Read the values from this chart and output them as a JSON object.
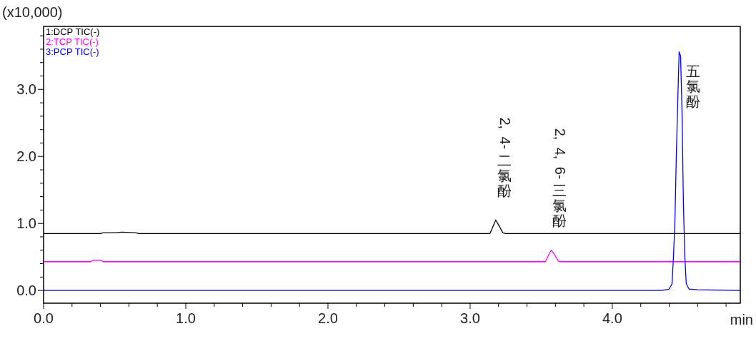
{
  "chart_data": {
    "type": "line",
    "ylabel": "(x10,000)",
    "xlabel": "min",
    "xlim": [
      0,
      4.9
    ],
    "ylim": [
      -0.19,
      3.94
    ],
    "xticks": [
      {
        "value": 0,
        "label": "0.0"
      },
      {
        "value": 0.2,
        "label": null
      },
      {
        "value": 0.4,
        "label": null
      },
      {
        "value": 0.6,
        "label": null
      },
      {
        "value": 0.8,
        "label": null
      },
      {
        "value": 1,
        "label": "1.0"
      },
      {
        "value": 1.2,
        "label": null
      },
      {
        "value": 1.4,
        "label": null
      },
      {
        "value": 1.6,
        "label": null
      },
      {
        "value": 1.8,
        "label": null
      },
      {
        "value": 2,
        "label": "2.0"
      },
      {
        "value": 2.2,
        "label": null
      },
      {
        "value": 2.4,
        "label": null
      },
      {
        "value": 2.6,
        "label": null
      },
      {
        "value": 2.8,
        "label": null
      },
      {
        "value": 3,
        "label": "3.0"
      },
      {
        "value": 3.2,
        "label": null
      },
      {
        "value": 3.4,
        "label": null
      },
      {
        "value": 3.6,
        "label": null
      },
      {
        "value": 3.8,
        "label": null
      },
      {
        "value": 4,
        "label": "4.0"
      },
      {
        "value": 4.2,
        "label": null
      },
      {
        "value": 4.4,
        "label": null
      },
      {
        "value": 4.6,
        "label": null
      },
      {
        "value": 4.8,
        "label": null
      }
    ],
    "yticks": [
      {
        "value": 0,
        "label": "0.0"
      },
      {
        "value": 0.2,
        "label": null
      },
      {
        "value": 0.4,
        "label": null
      },
      {
        "value": 0.6,
        "label": null
      },
      {
        "value": 0.8,
        "label": null
      },
      {
        "value": 1,
        "label": "1.0"
      },
      {
        "value": 1.2,
        "label": null
      },
      {
        "value": 1.4,
        "label": null
      },
      {
        "value": 1.6,
        "label": null
      },
      {
        "value": 1.8,
        "label": null
      },
      {
        "value": 2,
        "label": "2.0"
      },
      {
        "value": 2.2,
        "label": null
      },
      {
        "value": 2.4,
        "label": null
      },
      {
        "value": 2.6,
        "label": null
      },
      {
        "value": 2.8,
        "label": null
      },
      {
        "value": 3,
        "label": "3.0"
      },
      {
        "value": 3.2,
        "label": null
      },
      {
        "value": 3.4,
        "label": null
      },
      {
        "value": 3.6,
        "label": null
      },
      {
        "value": 3.8,
        "label": null
      }
    ],
    "grid": false,
    "legend": "top left",
    "marker": "none",
    "line_style": "solid",
    "series": [
      {
        "name": "1:DCP TIC(-)",
        "color": "#000000",
        "x": [
          0,
          0.4,
          0.42,
          0.5,
          0.55,
          0.65,
          0.67,
          3.14,
          3.16,
          3.18,
          3.2,
          3.23,
          3.25,
          4.9
        ],
        "values": [
          0.85,
          0.85,
          0.86,
          0.86,
          0.87,
          0.86,
          0.85,
          0.85,
          0.95,
          1.05,
          0.98,
          0.86,
          0.85,
          0.85
        ]
      },
      {
        "name": "2:TCP TIC(-)",
        "color": "#ff00ff",
        "x": [
          0,
          0.33,
          0.35,
          0.4,
          0.42,
          3.53,
          3.55,
          3.57,
          3.59,
          3.62,
          3.64,
          4.9
        ],
        "values": [
          0.43,
          0.43,
          0.45,
          0.45,
          0.43,
          0.43,
          0.52,
          0.6,
          0.55,
          0.44,
          0.43,
          0.43
        ]
      },
      {
        "name": "3:PCP TIC(-)",
        "color": "#0000ff",
        "x": [
          0,
          4.35,
          4.4,
          4.42,
          4.43,
          4.44,
          4.45,
          4.46,
          4.47,
          4.48,
          4.49,
          4.5,
          4.51,
          4.52,
          4.54,
          4.6,
          4.9
        ],
        "values": [
          0,
          0,
          0.02,
          0.1,
          0.5,
          1.0,
          2.0,
          2.8,
          3.56,
          3.5,
          2.7,
          1.3,
          0.5,
          0.1,
          0.02,
          0.01,
          0
        ]
      }
    ],
    "annotations": [
      {
        "text": "2, 4-二氯酚",
        "x": 3.18,
        "y": 1.05
      },
      {
        "text": "2, 4, 6-三氯酚",
        "x": 3.57,
        "y": 0.6
      },
      {
        "text": "五氯酚",
        "x": 4.47,
        "y": 3.56
      }
    ]
  }
}
